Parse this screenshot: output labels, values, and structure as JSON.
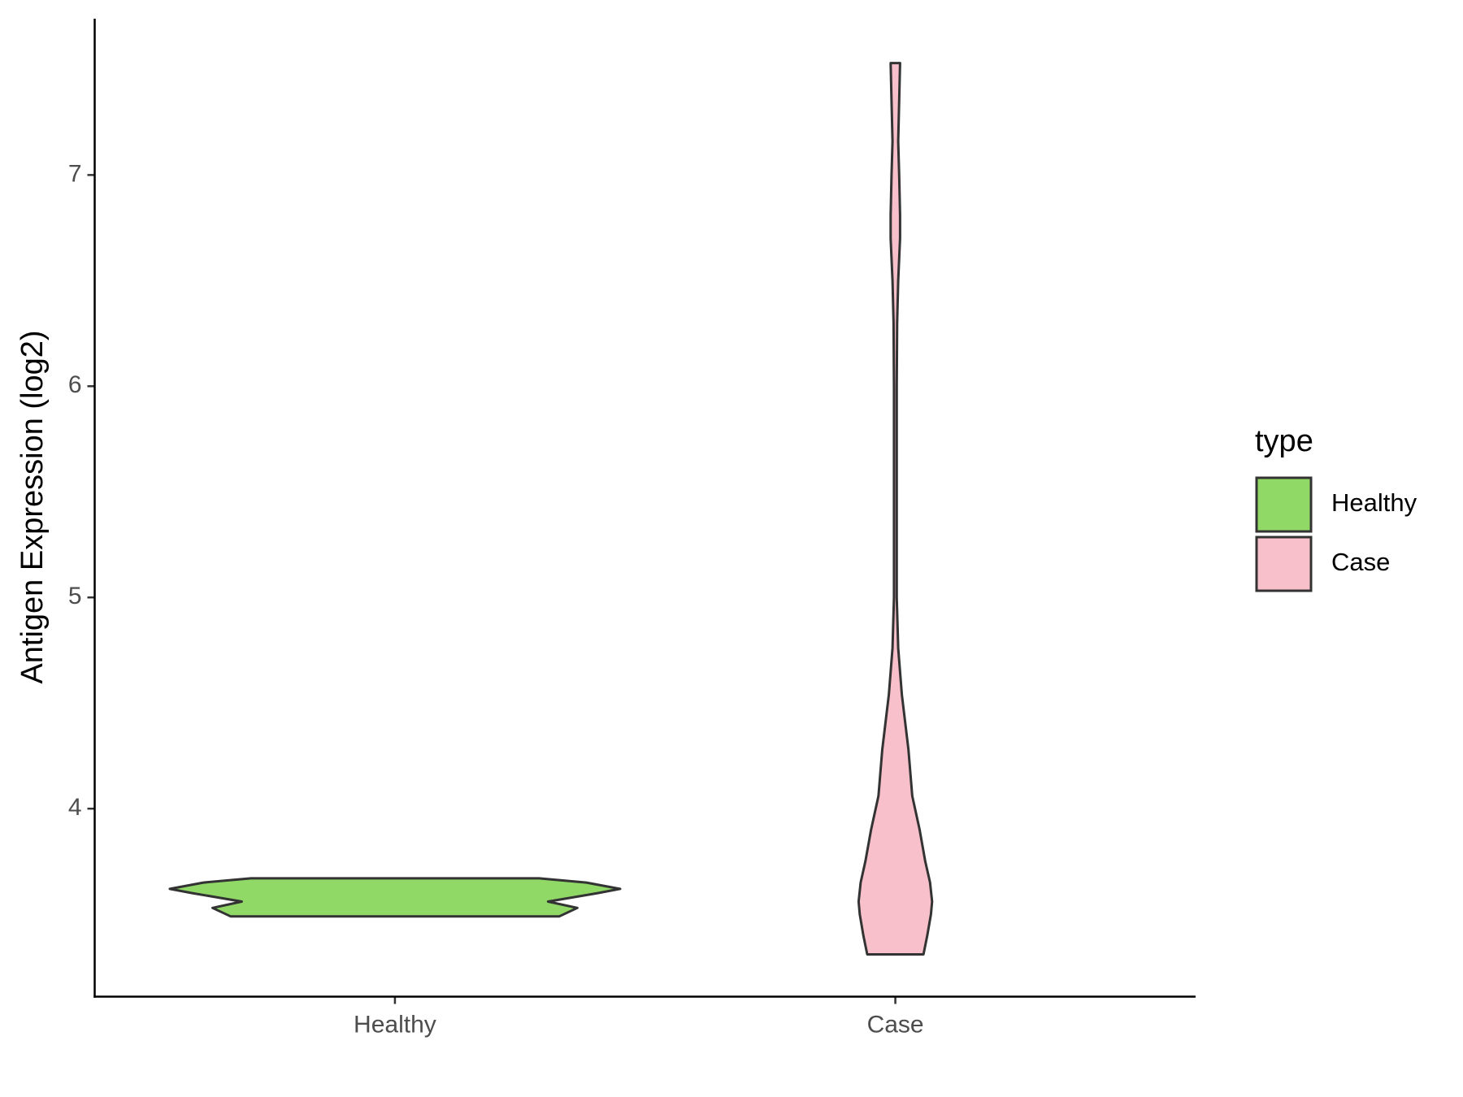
{
  "chart_data": {
    "type": "violin",
    "y_label": "Antigen Expression (log2)",
    "categories": [
      "Healthy",
      "Case"
    ],
    "ylim": [
      3.11,
      7.74
    ],
    "yticks": [
      4,
      5,
      6,
      7
    ],
    "legend_title": "type",
    "legend_position": "right",
    "series": [
      {
        "name": "Healthy",
        "color": "#90d966",
        "y": [
          3.49,
          3.53,
          3.56,
          3.6,
          3.62,
          3.65,
          3.67
        ],
        "density": [
          0.73,
          0.81,
          0.68,
          0.9,
          1.0,
          0.85,
          0.64
        ]
      },
      {
        "name": "Case",
        "color": "#f8c0ca",
        "y": [
          3.31,
          3.4,
          3.5,
          3.56,
          3.65,
          3.75,
          3.9,
          4.06,
          4.28,
          4.54,
          4.76,
          5.0,
          5.5,
          6.0,
          6.3,
          6.5,
          6.7,
          6.81,
          7.0,
          7.16,
          7.35,
          7.53
        ],
        "density": [
          0.125,
          0.142,
          0.158,
          0.163,
          0.154,
          0.133,
          0.108,
          0.075,
          0.058,
          0.029,
          0.0125,
          0.006,
          0.006,
          0.006,
          0.008,
          0.0125,
          0.021,
          0.021,
          0.017,
          0.0125,
          0.017,
          0.021
        ]
      }
    ]
  }
}
